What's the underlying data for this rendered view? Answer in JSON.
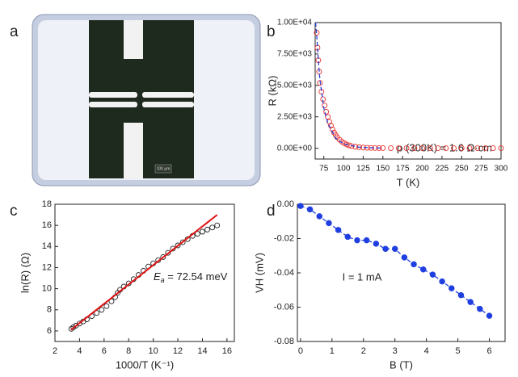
{
  "chart_data": [
    {
      "type": "image",
      "label": "a",
      "scale_bar": "100 μm"
    },
    {
      "type": "scatter",
      "label": "b",
      "xlabel": "T (K)",
      "ylabel": "R (kΩ)",
      "annotation": "ρ (300K) = 1.6 Ω·cm",
      "xlim": [
        64,
        300
      ],
      "xticks": [
        75,
        100,
        125,
        150,
        175,
        200,
        225,
        250,
        275,
        300
      ],
      "ylim": [
        -860,
        10000
      ],
      "yticks": [
        {
          "value": 0,
          "label": "0.00E+00"
        },
        {
          "value": 2500,
          "label": "2.50E+03"
        },
        {
          "value": 5000,
          "label": "5.00E+03"
        },
        {
          "value": 7500,
          "label": "7.50E+03"
        },
        {
          "value": 10000,
          "label": "1.00E+04"
        }
      ],
      "series": [
        {
          "color": "#e8322e",
          "marker": "open",
          "line": "none",
          "x": [
            66,
            67,
            68,
            69,
            70,
            72,
            74,
            76,
            78,
            80,
            82,
            84,
            86,
            88,
            90,
            92,
            95,
            98,
            101,
            104,
            107,
            110,
            115,
            120,
            125,
            130,
            135,
            140,
            145,
            150,
            160,
            170,
            180,
            190,
            200,
            210,
            220,
            230,
            240,
            250,
            260,
            270,
            280,
            290,
            300
          ],
          "values": [
            9200,
            8000,
            7000,
            6100,
            5200,
            4500,
            3900,
            3400,
            2900,
            2500,
            2100,
            1800,
            1500,
            1250,
            1050,
            870,
            680,
            520,
            400,
            300,
            230,
            170,
            120,
            80,
            55,
            38,
            26,
            18,
            13,
            9,
            6,
            4,
            3,
            2,
            2,
            1,
            1,
            1,
            1,
            1,
            1,
            1,
            1,
            1,
            1
          ]
        },
        {
          "color": "#2a3fd6",
          "marker": "none",
          "line": "dashed",
          "x": [
            64.5,
            66,
            68,
            70,
            75,
            80,
            90,
            100,
            120,
            150
          ],
          "values": [
            10000,
            9000,
            7000,
            5500,
            3200,
            2000,
            800,
            350,
            80,
            10
          ]
        }
      ]
    },
    {
      "type": "scatter",
      "label": "c",
      "xlabel": "1000/T (K⁻¹)",
      "ylabel": "ln(R) (Ω)",
      "annotation": {
        "symbol": "E",
        "sub": "a",
        "text": " = 72.54 meV"
      },
      "xlim": [
        2,
        16.6
      ],
      "xticks": [
        2,
        4,
        6,
        8,
        10,
        12,
        14,
        16
      ],
      "ylim": [
        5,
        18
      ],
      "yticks": [
        6,
        8,
        10,
        12,
        14,
        16,
        18
      ],
      "series": [
        {
          "color": "#222222",
          "marker": "open",
          "line": "none",
          "x": [
            3.33,
            3.5,
            3.7,
            4,
            4.3,
            4.6,
            5,
            5.4,
            5.8,
            6.2,
            6.6,
            6.9,
            7.1,
            7.3,
            7.6,
            8,
            8.4,
            8.8,
            9.2,
            9.6,
            10,
            10.4,
            10.8,
            11.2,
            11.6,
            12,
            12.4,
            12.8,
            13.2,
            13.6,
            14,
            14.4,
            14.8,
            15.2
          ],
          "values": [
            6.2,
            6.35,
            6.5,
            6.7,
            6.9,
            7.1,
            7.4,
            7.7,
            8.0,
            8.35,
            8.8,
            9.2,
            9.6,
            9.9,
            10.2,
            10.5,
            10.9,
            11.3,
            11.7,
            12.1,
            12.4,
            12.7,
            13.0,
            13.4,
            13.8,
            14.1,
            14.4,
            14.7,
            15.0,
            15.2,
            15.4,
            15.6,
            15.8,
            16.0
          ]
        },
        {
          "color": "#e01010",
          "marker": "none",
          "line": "solid",
          "x": [
            3.3,
            15.2
          ],
          "values": [
            6.1,
            17.0
          ]
        }
      ]
    },
    {
      "type": "scatter",
      "label": "d",
      "xlabel": "B (T)",
      "ylabel": "VH (mV)",
      "annotation": "I = 1 mA",
      "xlim": [
        -0.1,
        6.5
      ],
      "xticks": [
        0,
        1,
        2,
        3,
        4,
        5,
        6
      ],
      "ylim": [
        -0.08,
        0
      ],
      "yticks": [
        {
          "value": 0,
          "label": "0.00"
        },
        {
          "value": -0.02,
          "label": "-0.02"
        },
        {
          "value": -0.04,
          "label": "-0.04"
        },
        {
          "value": -0.06,
          "label": "-0.06"
        },
        {
          "value": -0.08,
          "label": "-0.08"
        }
      ],
      "series": [
        {
          "color": "#1f3fe0",
          "marker": "filled",
          "line": "dashed",
          "x": [
            0,
            0.3,
            0.6,
            0.9,
            1.2,
            1.5,
            1.8,
            2.1,
            2.4,
            2.7,
            3.0,
            3.3,
            3.6,
            3.9,
            4.2,
            4.5,
            4.8,
            5.1,
            5.4,
            5.7,
            6.0
          ],
          "values": [
            -0.001,
            -0.003,
            -0.007,
            -0.011,
            -0.015,
            -0.019,
            -0.021,
            -0.021,
            -0.023,
            -0.026,
            -0.026,
            -0.031,
            -0.035,
            -0.038,
            -0.041,
            -0.045,
            -0.049,
            -0.053,
            -0.057,
            -0.061,
            -0.065
          ]
        }
      ]
    }
  ]
}
